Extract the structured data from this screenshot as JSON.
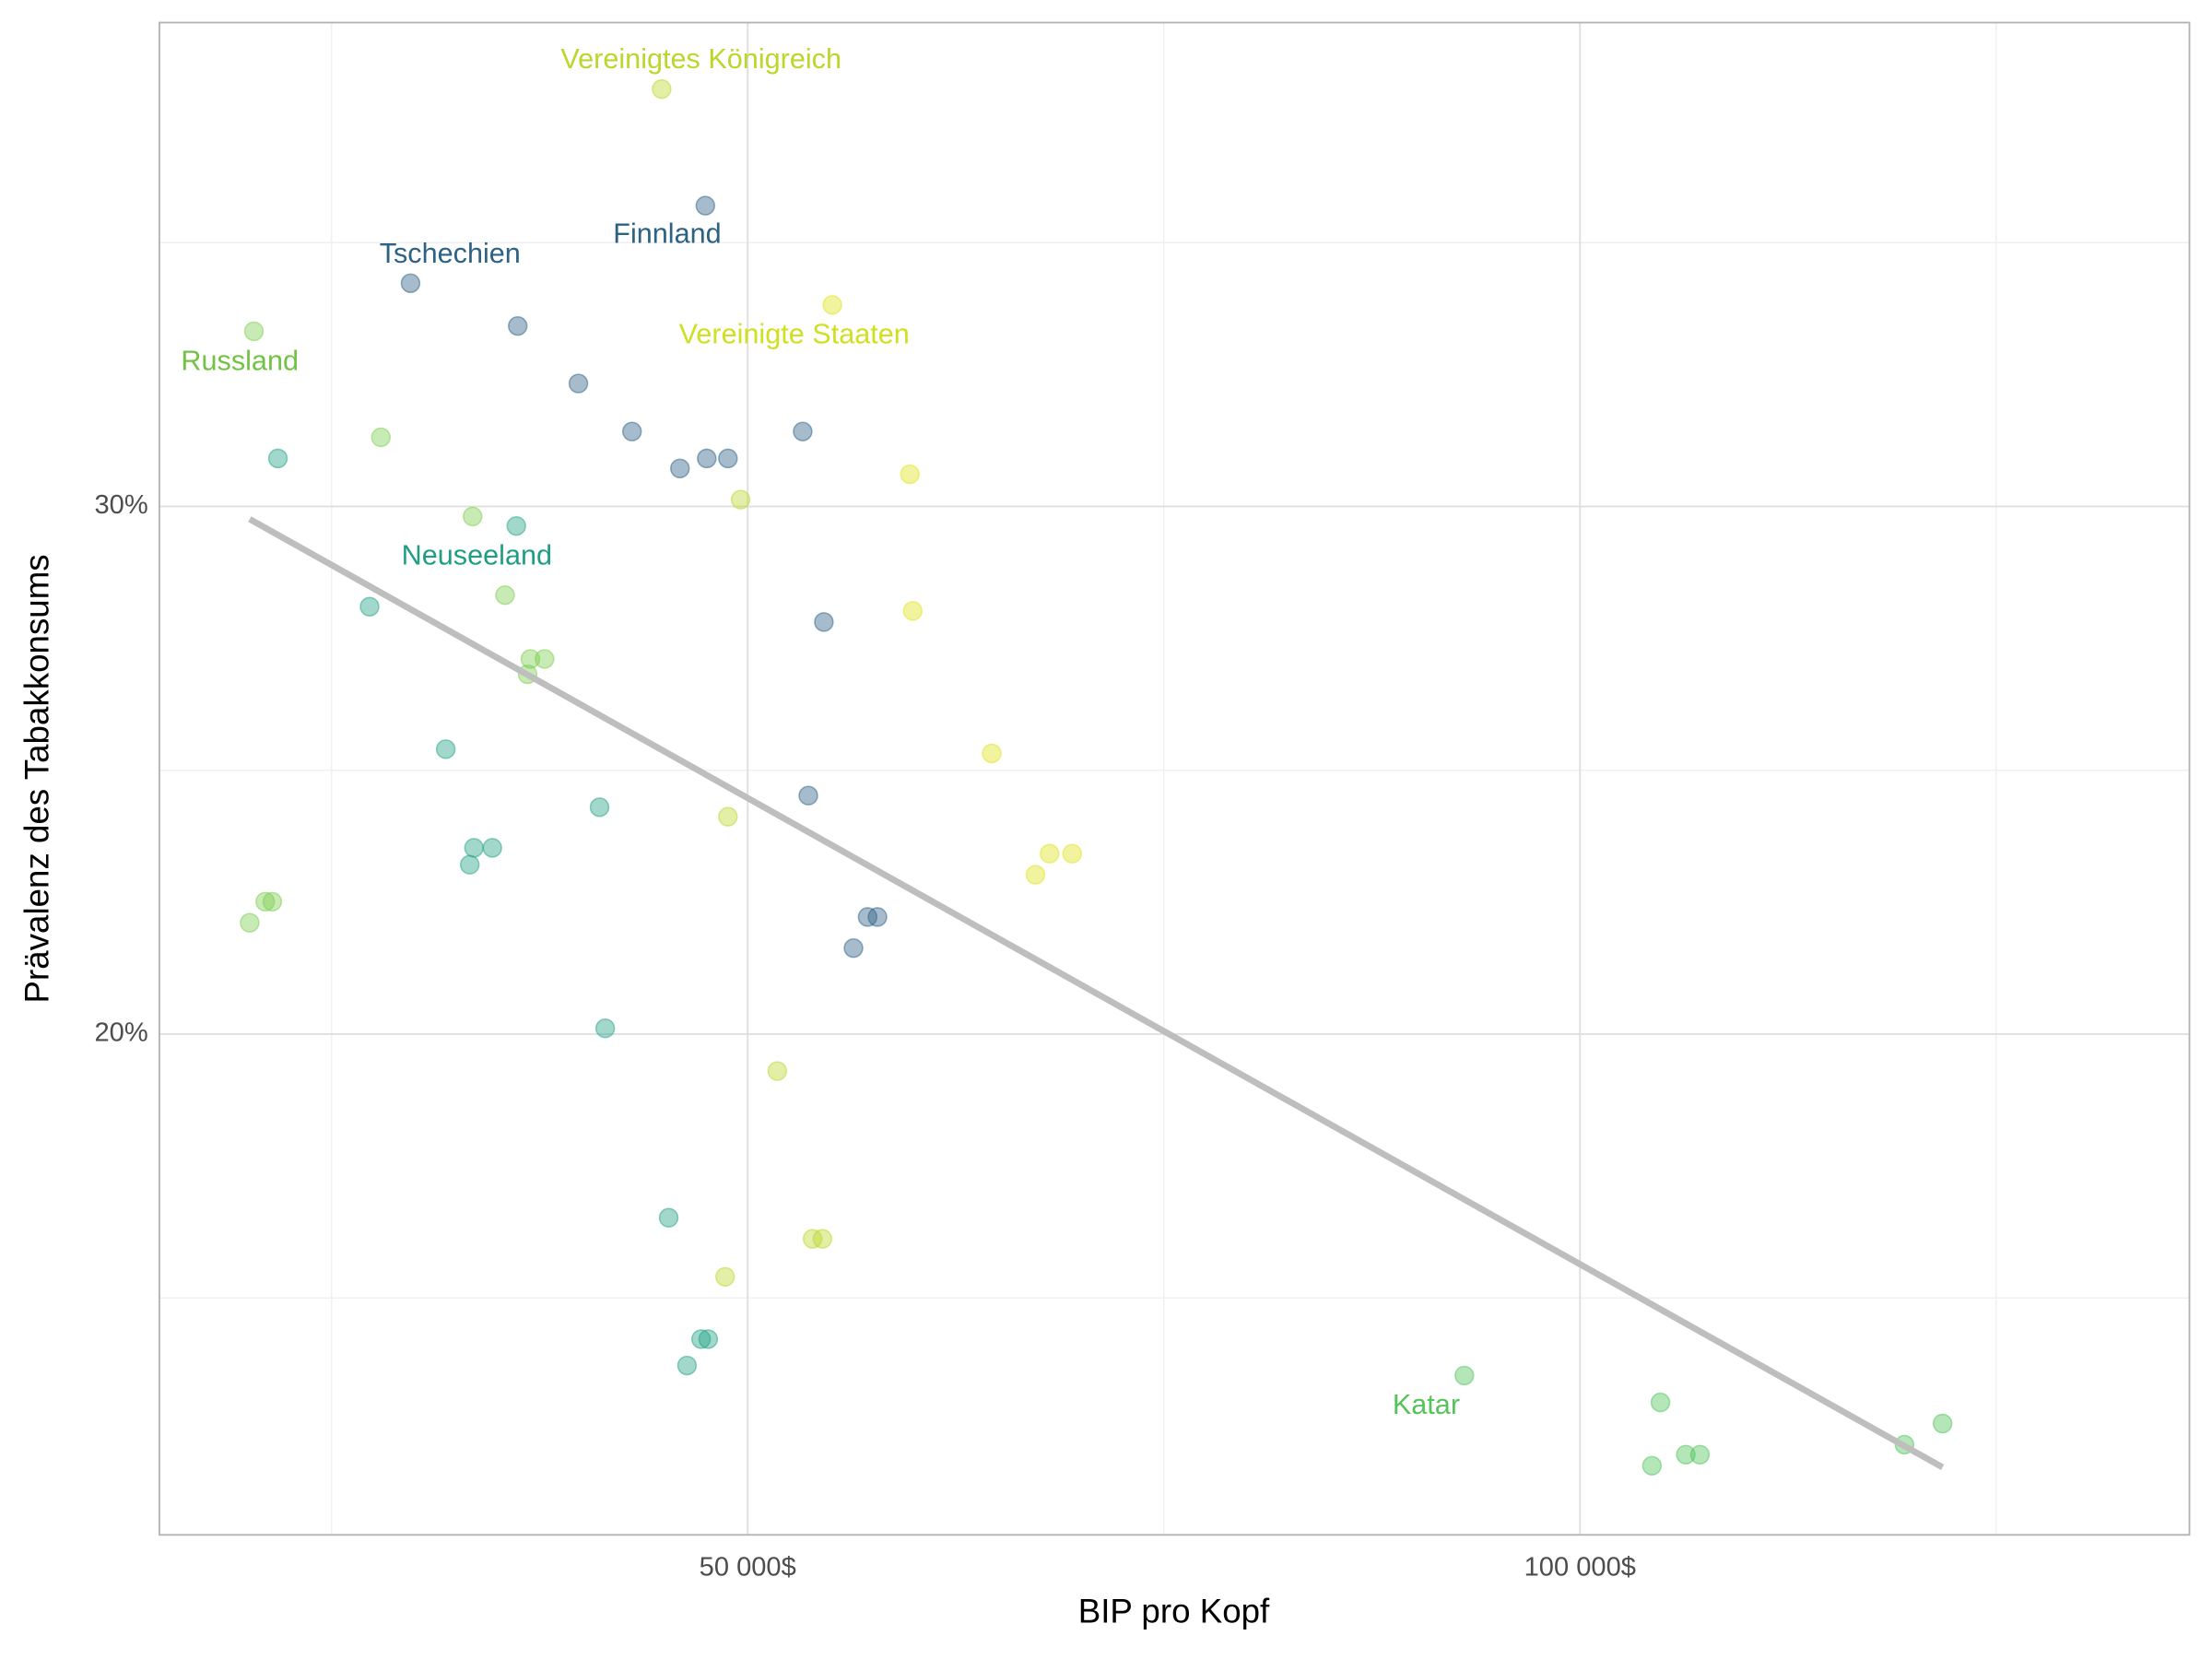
{
  "chart_data": {
    "type": "scatter",
    "x_label": "BIP pro Kopf",
    "y_label": "Prävalenz des Tabakkonsums",
    "xlim": [
      14661,
      136610
    ],
    "ylim": [
      10.51,
      39.17
    ],
    "xticks": [
      {
        "value": 50000,
        "label": "50 000$"
      },
      {
        "value": 100000,
        "label": "100 000$"
      }
    ],
    "yticks": [
      {
        "value": 20,
        "label": "20%"
      },
      {
        "value": 30,
        "label": "30%"
      }
    ],
    "x_minor_ticks": [
      25000,
      75000,
      125000
    ],
    "y_minor_ticks": [
      15,
      25,
      35
    ],
    "grid": true,
    "series": [
      {
        "color": "#2c5f85",
        "x": [
          47458,
          29746,
          36186,
          39831,
          43051,
          45932,
          47542,
          48814,
          53305,
          54576,
          53644,
          57203,
          57797,
          56356
        ],
        "y": [
          35.7,
          34.23,
          33.42,
          32.33,
          31.42,
          30.72,
          30.91,
          30.91,
          31.42,
          27.81,
          24.52,
          22.22,
          22.22,
          21.63
        ]
      },
      {
        "color": "#21a283",
        "x": [
          21780,
          36102,
          27288,
          31864,
          33559,
          34661,
          33305,
          41102,
          41441,
          45254,
          47203,
          47627,
          46356
        ],
        "y": [
          30.91,
          29.63,
          28.1,
          25.4,
          23.53,
          23.53,
          23.21,
          24.3,
          20.11,
          16.52,
          14.22,
          14.22,
          13.72
        ]
      },
      {
        "color": "#7ccd4e",
        "x": [
          20339,
          27966,
          33475,
          35424,
          36949,
          37797,
          36780,
          20085,
          21017,
          21441
        ],
        "y": [
          33.32,
          31.31,
          29.81,
          28.32,
          27.11,
          27.11,
          26.82,
          22.11,
          22.51,
          22.51
        ]
      },
      {
        "color": "#4ec35a",
        "x": [
          93051,
          104831,
          104322,
          106356,
          107203,
          119492,
          121780
        ],
        "y": [
          13.53,
          13.02,
          11.82,
          12.03,
          12.03,
          12.22,
          12.62
        ]
      },
      {
        "color": "#bcd62c",
        "x": [
          44831,
          49576,
          48814,
          51780,
          48644,
          53898,
          54492
        ],
        "y": [
          37.91,
          30.13,
          24.12,
          19.3,
          15.4,
          16.12,
          16.12
        ]
      },
      {
        "color": "#dfe318",
        "x": [
          55085,
          59746,
          59915,
          64661,
          68136,
          69492,
          67288
        ],
        "y": [
          33.82,
          30.61,
          28.02,
          25.32,
          23.42,
          23.42,
          23.02
        ]
      }
    ],
    "trend_line": {
      "color": "#bebebe",
      "x": [
        20085,
        121780
      ],
      "y": [
        29.76,
        11.79
      ]
    },
    "annotations": [
      {
        "text": "Vereinigtes Königreich",
        "color": "#bcd62c"
      },
      {
        "text": "Finnland",
        "color": "#2c6283"
      },
      {
        "text": "Tschechien",
        "color": "#2c6283"
      },
      {
        "text": "Vereinigte Staaten",
        "color": "#d0e021"
      },
      {
        "text": "Russland",
        "color": "#72c244"
      },
      {
        "text": "Neuseeland",
        "color": "#1f9e84"
      },
      {
        "text": "Katar",
        "color": "#56c35a"
      }
    ]
  }
}
